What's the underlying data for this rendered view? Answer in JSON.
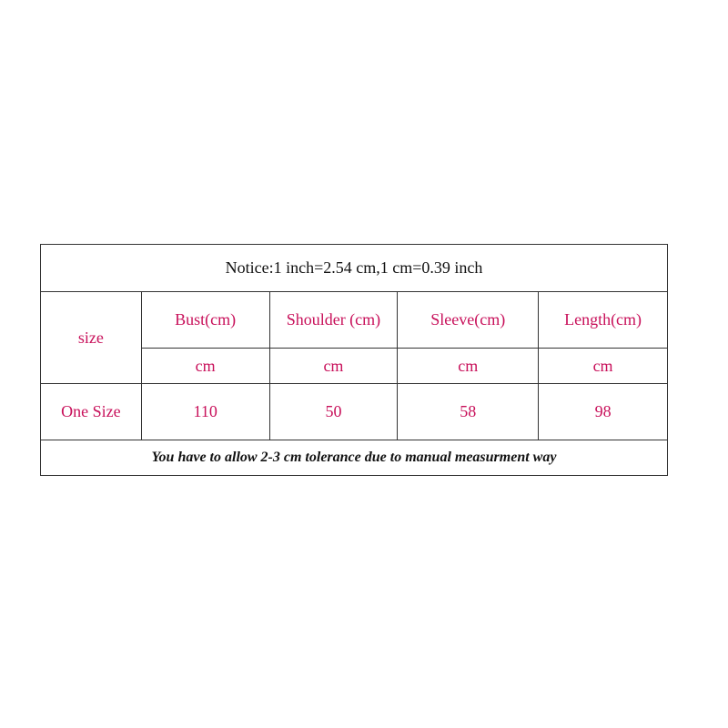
{
  "notice": "Notice:1 inch=2.54 cm,1 cm=0.39 inch",
  "size_label": "size",
  "columns": [
    "Bust(cm)",
    "Shoulder (cm)",
    "Sleeve(cm)",
    "Length(cm)"
  ],
  "units": [
    "cm",
    "cm",
    "cm",
    "cm"
  ],
  "rows": [
    {
      "size": "One Size",
      "values": [
        "110",
        "50",
        "58",
        "98"
      ]
    }
  ],
  "footnote": "You have to allow 2-3 cm tolerance due to manual measurment way",
  "colors": {
    "accent": "#c8105a",
    "text": "#111111",
    "border": "#333333"
  }
}
